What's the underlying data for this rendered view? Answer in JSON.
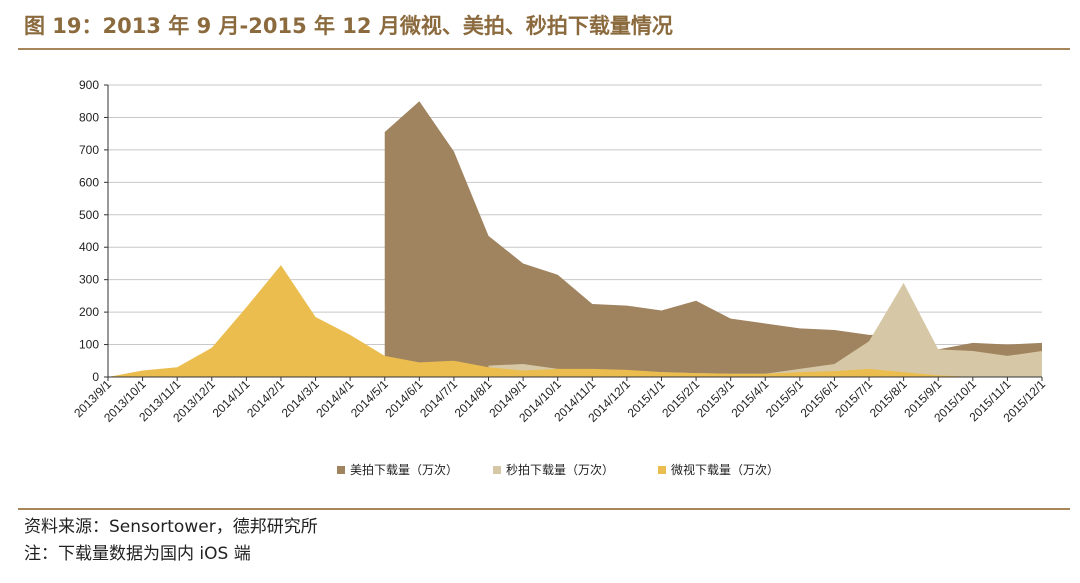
{
  "header": {
    "title": "图 19：2013 年 9 月-2015 年 12 月微视、美拍、秒拍下载量情况"
  },
  "footer": {
    "source": "资料来源：Sensortower，德邦研究所",
    "note": "注：下载量数据为国内 iOS 端"
  },
  "chart_data": {
    "type": "area",
    "categories": [
      "2013/9/1",
      "2013/10/1",
      "2013/11/1",
      "2013/12/1",
      "2014/1/1",
      "2014/2/1",
      "2014/3/1",
      "2014/4/1",
      "2014/5/1",
      "2014/6/1",
      "2014/7/1",
      "2014/8/1",
      "2014/9/1",
      "2014/10/1",
      "2014/11/1",
      "2014/12/1",
      "2015/1/1",
      "2015/2/1",
      "2015/3/1",
      "2015/4/1",
      "2015/5/1",
      "2015/6/1",
      "2015/7/1",
      "2015/8/1",
      "2015/9/1",
      "2015/10/1",
      "2015/11/1",
      "2015/12/1"
    ],
    "yticks": [
      "0",
      "100",
      "200",
      "300",
      "400",
      "500",
      "600",
      "700",
      "800",
      "900"
    ],
    "ylim": [
      0,
      900
    ],
    "grid": true,
    "legend_position": "bottom",
    "series": [
      {
        "name": "美拍下载量（万次）",
        "color": "#a0835f",
        "values": [
          null,
          null,
          null,
          null,
          null,
          null,
          null,
          null,
          755,
          850,
          695,
          435,
          350,
          315,
          225,
          220,
          205,
          235,
          180,
          165,
          150,
          145,
          130,
          130,
          85,
          105,
          100,
          105
        ]
      },
      {
        "name": "秒拍下载量（万次）",
        "color": "#d6c8a6",
        "values": [
          null,
          null,
          null,
          null,
          null,
          null,
          null,
          null,
          null,
          null,
          null,
          35,
          40,
          25,
          20,
          20,
          15,
          12,
          10,
          10,
          25,
          40,
          110,
          290,
          85,
          80,
          65,
          80
        ]
      },
      {
        "name": "微视下载量（万次）",
        "color": "#ebbd4f",
        "values": [
          0,
          20,
          30,
          90,
          215,
          345,
          185,
          130,
          65,
          45,
          50,
          30,
          20,
          25,
          25,
          22,
          15,
          12,
          10,
          10,
          15,
          18,
          25,
          15,
          5,
          0,
          0,
          0
        ]
      }
    ]
  }
}
